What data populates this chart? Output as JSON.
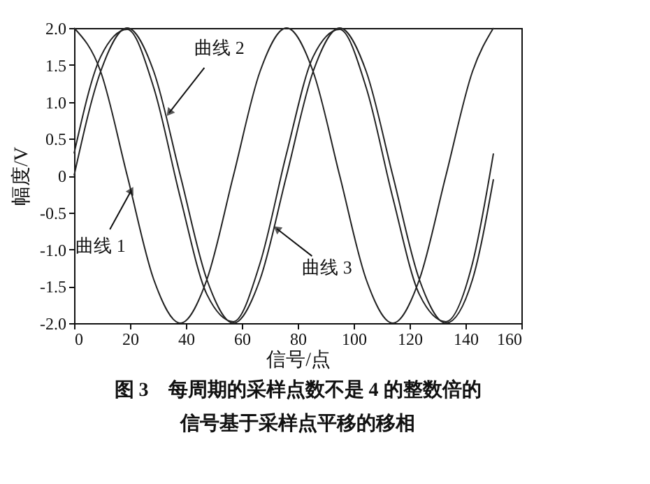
{
  "chart_data": {
    "type": "line",
    "title": "图 3　每周期的采样点数不是 4 的整数倍的信号基于采样点平移的移相",
    "xlabel": "信号/点",
    "ylabel": "幅度/V",
    "x": [
      0,
      9.5,
      19,
      28.5,
      38,
      47.5,
      57,
      66.5,
      76,
      85.5,
      95,
      104.5,
      114,
      123.5,
      133,
      142.5,
      150
    ],
    "series": [
      {
        "color": "#222222",
        "values": [
          2,
          1.41,
          0,
          -1.41,
          -2,
          -1.41,
          0,
          1.41,
          2,
          1.41,
          0,
          -1.41,
          -2,
          -1.41,
          0,
          1.41,
          2
        ]
      },
      {
        "color": "#222222",
        "values": [
          0,
          1.41,
          2,
          1.41,
          0,
          -1.41,
          -2,
          -1.41,
          0,
          1.41,
          2,
          1.41,
          0,
          -1.41,
          -2,
          -1.41,
          -0.05
        ]
      },
      {
        "color": "#222222",
        "values": [
          0.3,
          1.61,
          1.98,
          1.19,
          -0.3,
          -1.61,
          -1.98,
          -1.19,
          0.3,
          1.61,
          1.98,
          1.19,
          -0.3,
          -1.61,
          -1.98,
          -1.19,
          0.3
        ]
      }
    ],
    "annotations": [
      {
        "text": "曲线 1",
        "x": 20.5,
        "y": -0.2
      },
      {
        "text": "曲线 2",
        "x": 34,
        "y": 0.85
      },
      {
        "text": "曲线 3",
        "x": 72.5,
        "y": -0.72
      }
    ],
    "xlim": [
      0,
      160
    ],
    "xticks": [
      0,
      20,
      40,
      60,
      80,
      100,
      120,
      140,
      160
    ],
    "ylim": [
      -2,
      2
    ],
    "yticks": [
      {
        "value": -2,
        "label": "-2.0"
      },
      {
        "value": -1.5,
        "label": "-1.5"
      },
      {
        "value": -1,
        "label": "-1.0"
      },
      {
        "value": -0.5,
        "label": "-0.5"
      },
      0,
      {
        "value": 0.5,
        "label": "0.5"
      },
      {
        "value": 1,
        "label": "1.0"
      },
      {
        "value": 1.5,
        "label": "1.5"
      },
      {
        "value": 2,
        "label": "2.0"
      }
    ],
    "grid": false,
    "legend": false,
    "line_style": "solid",
    "marker": "none"
  }
}
